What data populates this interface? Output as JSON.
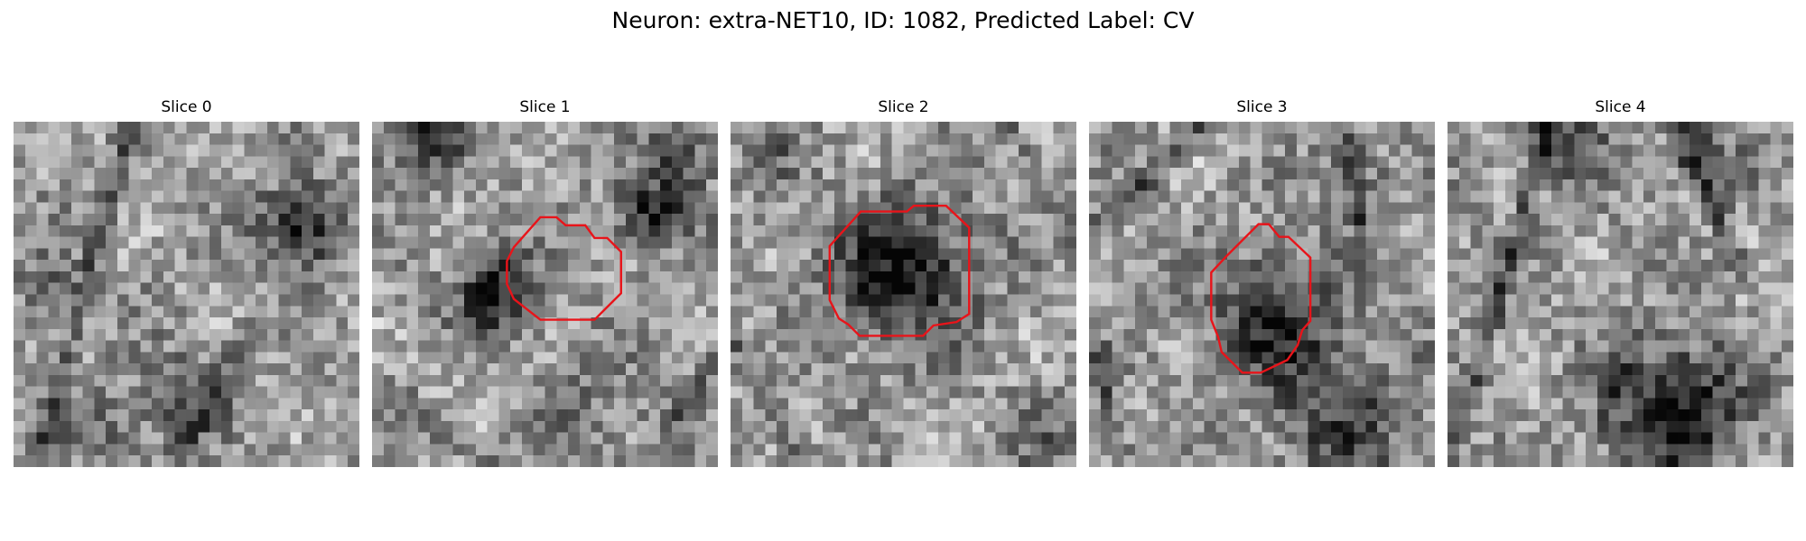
{
  "figure": {
    "title": "Neuron: extra-NET10, ID: 1082, Predicted Label: CV"
  },
  "panels": [
    {
      "title": "Slice 0",
      "has_contour": false
    },
    {
      "title": "Slice 1",
      "has_contour": true
    },
    {
      "title": "Slice 2",
      "has_contour": true
    },
    {
      "title": "Slice 3",
      "has_contour": true
    },
    {
      "title": "Slice 4",
      "has_contour": false
    }
  ],
  "colors": {
    "contour": "#e8141a",
    "background": "#ffffff"
  }
}
